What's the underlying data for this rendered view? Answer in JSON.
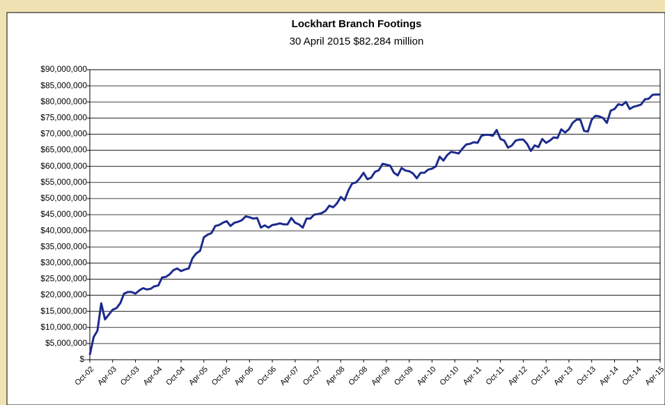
{
  "chart_data": {
    "type": "line",
    "title": "Lockhart Branch Footings",
    "subtitle": "30 April 2015 $82.284 million",
    "categories": [
      "Oct-02",
      null,
      null,
      null,
      null,
      null,
      "Apr-03",
      null,
      null,
      null,
      null,
      null,
      "Oct-03",
      null,
      null,
      null,
      null,
      null,
      "Apr-04",
      null,
      null,
      null,
      null,
      null,
      "Oct-04",
      null,
      null,
      null,
      null,
      null,
      "Apr-05",
      null,
      null,
      null,
      null,
      null,
      "Oct-05",
      null,
      null,
      null,
      null,
      null,
      "Apr-06",
      null,
      null,
      null,
      null,
      null,
      "Oct-06",
      null,
      null,
      null,
      null,
      null,
      "Apr-07",
      null,
      null,
      null,
      null,
      null,
      "Oct-07",
      null,
      null,
      null,
      null,
      null,
      "Apr-08",
      null,
      null,
      null,
      null,
      null,
      "Oct-08",
      null,
      null,
      null,
      null,
      null,
      "Apr-09",
      null,
      null,
      null,
      null,
      null,
      "Oct-09",
      null,
      null,
      null,
      null,
      null,
      "Apr-10",
      null,
      null,
      null,
      null,
      null,
      "Oct-10",
      null,
      null,
      null,
      null,
      null,
      "Apr-11",
      null,
      null,
      null,
      null,
      null,
      "Oct-11",
      null,
      null,
      null,
      null,
      null,
      "Apr-12",
      null,
      null,
      null,
      null,
      null,
      "Oct-12",
      null,
      null,
      null,
      null,
      null,
      "Apr-13",
      null,
      null,
      null,
      null,
      null,
      "Oct-13",
      null,
      null,
      null,
      null,
      null,
      "Apr-14",
      null,
      null,
      null,
      null,
      null,
      "Oct-14",
      null,
      null,
      null,
      null,
      null,
      "Apr-15"
    ],
    "series": [
      {
        "name": "Footings",
        "color": "#1c2a8c",
        "values": [
          1500000,
          7000000,
          9000000,
          17500000,
          12500000,
          14000000,
          15500000,
          16000000,
          17500000,
          20500000,
          21000000,
          21000000,
          20500000,
          21500000,
          22200000,
          21800000,
          22000000,
          22800000,
          23000000,
          25500000,
          25700000,
          26500000,
          27800000,
          28300000,
          27500000,
          28000000,
          28300000,
          31500000,
          33000000,
          33800000,
          38000000,
          38800000,
          39300000,
          41500000,
          41800000,
          42500000,
          43000000,
          41500000,
          42500000,
          42800000,
          43300000,
          44500000,
          44200000,
          43800000,
          44000000,
          41000000,
          41700000,
          41000000,
          41800000,
          42000000,
          42300000,
          42000000,
          42000000,
          44000000,
          42500000,
          42000000,
          41000000,
          43800000,
          43800000,
          45000000,
          45200000,
          45500000,
          46200000,
          47800000,
          47300000,
          48500000,
          50500000,
          49500000,
          52500000,
          54700000,
          55000000,
          56300000,
          58000000,
          56000000,
          56500000,
          58300000,
          58800000,
          60800000,
          60500000,
          60200000,
          58000000,
          57200000,
          59500000,
          58700000,
          58500000,
          57800000,
          56300000,
          58000000,
          58000000,
          59000000,
          59300000,
          60000000,
          63000000,
          61800000,
          63500000,
          64500000,
          64300000,
          64000000,
          65500000,
          66800000,
          67000000,
          67500000,
          67300000,
          69500000,
          69800000,
          69800000,
          69500000,
          71300000,
          68500000,
          68000000,
          65800000,
          66500000,
          68000000,
          68300000,
          68300000,
          67000000,
          64800000,
          66500000,
          66000000,
          68500000,
          67300000,
          68000000,
          69000000,
          68800000,
          71500000,
          70500000,
          71500000,
          73500000,
          74500000,
          74500000,
          71000000,
          70800000,
          74500000,
          75700000,
          75500000,
          75000000,
          73500000,
          77300000,
          77800000,
          79300000,
          79000000,
          80000000,
          77800000,
          78500000,
          78800000,
          79200000,
          80800000,
          81000000,
          82200000,
          82300000,
          82284000
        ]
      }
    ],
    "ylim": [
      0,
      90000000
    ],
    "yticks": [
      {
        "value": 0,
        "label": "$-"
      },
      {
        "value": 5000000,
        "label": "$5,000,000"
      },
      {
        "value": 10000000,
        "label": "$10,000,000"
      },
      {
        "value": 15000000,
        "label": "$15,000,000"
      },
      {
        "value": 20000000,
        "label": "$20,000,000"
      },
      {
        "value": 25000000,
        "label": "$25,000,000"
      },
      {
        "value": 30000000,
        "label": "$30,000,000"
      },
      {
        "value": 35000000,
        "label": "$35,000,000"
      },
      {
        "value": 40000000,
        "label": "$40,000,000"
      },
      {
        "value": 45000000,
        "label": "$45,000,000"
      },
      {
        "value": 50000000,
        "label": "$50,000,000"
      },
      {
        "value": 55000000,
        "label": "$55,000,000"
      },
      {
        "value": 60000000,
        "label": "$60,000,000"
      },
      {
        "value": 65000000,
        "label": "$65,000,000"
      },
      {
        "value": 70000000,
        "label": "$70,000,000"
      },
      {
        "value": 75000000,
        "label": "$75,000,000"
      },
      {
        "value": 80000000,
        "label": "$80,000,000"
      },
      {
        "value": 85000000,
        "label": "$85,000,000"
      },
      {
        "value": 90000000,
        "label": "$90,000,000"
      }
    ],
    "grid": true
  }
}
